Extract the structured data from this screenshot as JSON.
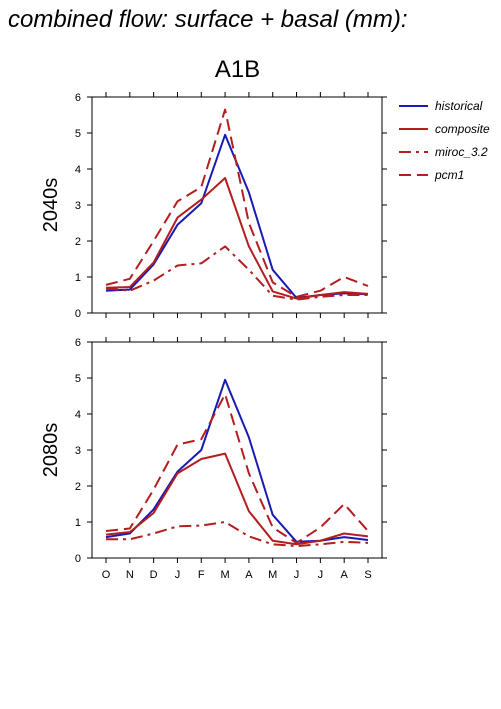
{
  "figure": {
    "title": "combined flow: surface + basal (mm):",
    "subtitle": "A1B"
  },
  "colors": {
    "historical": "#1a1ab4",
    "future": "#b41e1e"
  },
  "legend": {
    "placement": "top-right",
    "entries": [
      {
        "label": "historical",
        "color": "#1a1ab4",
        "dash": "solid"
      },
      {
        "label": "composite",
        "color": "#b41e1e",
        "dash": "solid"
      },
      {
        "label": "miroc_3.2",
        "color": "#b41e1e",
        "dash": "dashdot"
      },
      {
        "label": "pcm1",
        "color": "#b41e1e",
        "dash": "dashed"
      }
    ]
  },
  "chart_data": [
    {
      "type": "line",
      "ylabel": "2040s",
      "categories": [
        "O",
        "N",
        "D",
        "J",
        "F",
        "M",
        "A",
        "M",
        "J",
        "J",
        "A",
        "S"
      ],
      "ylim": [
        0,
        6
      ],
      "yticks": [
        0,
        1,
        2,
        3,
        4,
        5,
        6
      ],
      "grid": false,
      "series": [
        {
          "name": "historical",
          "values": [
            0.62,
            0.65,
            1.35,
            2.45,
            3.05,
            4.95,
            3.35,
            1.2,
            0.42,
            0.5,
            0.55,
            0.52
          ]
        },
        {
          "name": "composite",
          "values": [
            0.7,
            0.72,
            1.4,
            2.65,
            3.15,
            3.75,
            1.85,
            0.6,
            0.4,
            0.5,
            0.58,
            0.53
          ]
        },
        {
          "name": "miroc_3.2",
          "values": [
            0.68,
            0.62,
            0.9,
            1.32,
            1.38,
            1.85,
            1.2,
            0.48,
            0.37,
            0.45,
            0.5,
            0.5
          ]
        },
        {
          "name": "pcm1",
          "values": [
            0.78,
            0.95,
            2.0,
            3.1,
            3.5,
            5.65,
            2.5,
            0.85,
            0.45,
            0.62,
            1.0,
            0.75
          ]
        }
      ]
    },
    {
      "type": "line",
      "ylabel": "2080s",
      "categories": [
        "O",
        "N",
        "D",
        "J",
        "F",
        "M",
        "A",
        "M",
        "J",
        "J",
        "A",
        "S"
      ],
      "ylim": [
        0,
        6
      ],
      "yticks": [
        0,
        1,
        2,
        3,
        4,
        5,
        6
      ],
      "grid": false,
      "series": [
        {
          "name": "historical",
          "values": [
            0.58,
            0.68,
            1.35,
            2.4,
            3.0,
            4.95,
            3.35,
            1.2,
            0.45,
            0.48,
            0.58,
            0.5
          ]
        },
        {
          "name": "composite",
          "values": [
            0.65,
            0.72,
            1.25,
            2.35,
            2.75,
            2.9,
            1.3,
            0.48,
            0.38,
            0.48,
            0.68,
            0.6
          ]
        },
        {
          "name": "miroc_3.2",
          "values": [
            0.52,
            0.52,
            0.68,
            0.88,
            0.9,
            1.0,
            0.6,
            0.38,
            0.33,
            0.38,
            0.45,
            0.42
          ]
        },
        {
          "name": "pcm1",
          "values": [
            0.75,
            0.82,
            1.9,
            3.15,
            3.3,
            4.55,
            2.35,
            0.85,
            0.42,
            0.85,
            1.5,
            0.75
          ]
        }
      ]
    }
  ]
}
